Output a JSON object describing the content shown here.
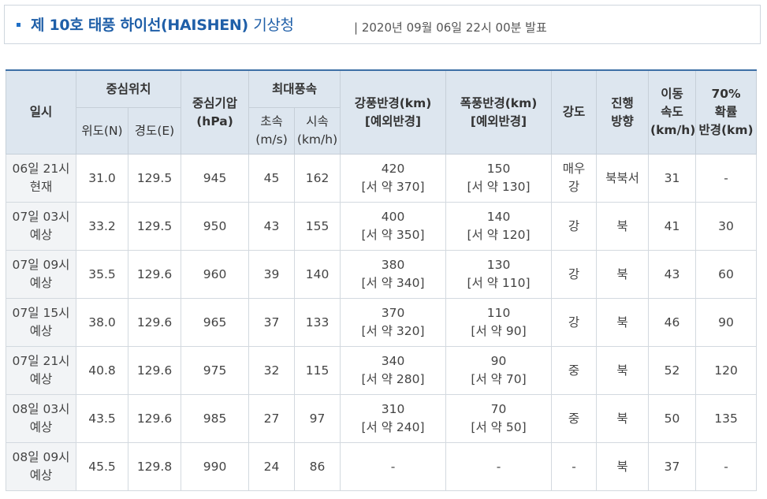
{
  "header": {
    "title": "제 10호 태풍 하이선(HAISHEN)",
    "org": "기상청",
    "date": "| 2020년 09월 06일 22시 00분 발표"
  },
  "columns": {
    "time": "일시",
    "center": "중심위치",
    "lat": "위도(N)",
    "lon": "경도(E)",
    "pressure_1": "중심기압",
    "pressure_2": "(hPa)",
    "maxwind": "최대풍속",
    "ms_1": "초속",
    "ms_2": "(m/s)",
    "kmh_1": "시속",
    "kmh_2": "(km/h)",
    "gale_1": "강풍반경(km)",
    "gale_2": "[예외반경]",
    "storm_1": "폭풍반경(km)",
    "storm_2": "[예외반경]",
    "intensity": "강도",
    "dir_1": "진행",
    "dir_2": "방향",
    "speed_1": "이동",
    "speed_2": "속도",
    "speed_3": "(km/h)",
    "prob_1": "70%",
    "prob_2": "확률",
    "prob_3": "반경(km)"
  },
  "rows": [
    {
      "time": "06일 21시",
      "kind": "현재",
      "lat": "31.0",
      "lon": "129.5",
      "pressure": "945",
      "ms": "45",
      "kmh": "162",
      "gale": "420",
      "gale_ex": "[서 약 370]",
      "storm": "150",
      "storm_ex": "[서 약 130]",
      "intensity": "매우 강",
      "dir": "북북서",
      "speed": "31",
      "prob": "-"
    },
    {
      "time": "07일 03시",
      "kind": "예상",
      "lat": "33.2",
      "lon": "129.5",
      "pressure": "950",
      "ms": "43",
      "kmh": "155",
      "gale": "400",
      "gale_ex": "[서 약 350]",
      "storm": "140",
      "storm_ex": "[서 약 120]",
      "intensity": "강",
      "dir": "북",
      "speed": "41",
      "prob": "30"
    },
    {
      "time": "07일 09시",
      "kind": "예상",
      "lat": "35.5",
      "lon": "129.6",
      "pressure": "960",
      "ms": "39",
      "kmh": "140",
      "gale": "380",
      "gale_ex": "[서 약 340]",
      "storm": "130",
      "storm_ex": "[서 약 110]",
      "intensity": "강",
      "dir": "북",
      "speed": "43",
      "prob": "60"
    },
    {
      "time": "07일 15시",
      "kind": "예상",
      "lat": "38.0",
      "lon": "129.6",
      "pressure": "965",
      "ms": "37",
      "kmh": "133",
      "gale": "370",
      "gale_ex": "[서 약 320]",
      "storm": "110",
      "storm_ex": "[서 약 90]",
      "intensity": "강",
      "dir": "북",
      "speed": "46",
      "prob": "90"
    },
    {
      "time": "07일 21시",
      "kind": "예상",
      "lat": "40.8",
      "lon": "129.6",
      "pressure": "975",
      "ms": "32",
      "kmh": "115",
      "gale": "340",
      "gale_ex": "[서 약 280]",
      "storm": "90",
      "storm_ex": "[서 약 70]",
      "intensity": "중",
      "dir": "북",
      "speed": "52",
      "prob": "120"
    },
    {
      "time": "08일 03시",
      "kind": "예상",
      "lat": "43.5",
      "lon": "129.6",
      "pressure": "985",
      "ms": "27",
      "kmh": "97",
      "gale": "310",
      "gale_ex": "[서 약 240]",
      "storm": "70",
      "storm_ex": "[서 약 50]",
      "intensity": "중",
      "dir": "북",
      "speed": "50",
      "prob": "135"
    },
    {
      "time": "08일 09시",
      "kind": "예상",
      "lat": "45.5",
      "lon": "129.8",
      "pressure": "990",
      "ms": "24",
      "kmh": "86",
      "gale": "-",
      "gale_ex": "",
      "storm": "-",
      "storm_ex": "",
      "intensity": "-",
      "dir": "북",
      "speed": "37",
      "prob": "-"
    }
  ]
}
